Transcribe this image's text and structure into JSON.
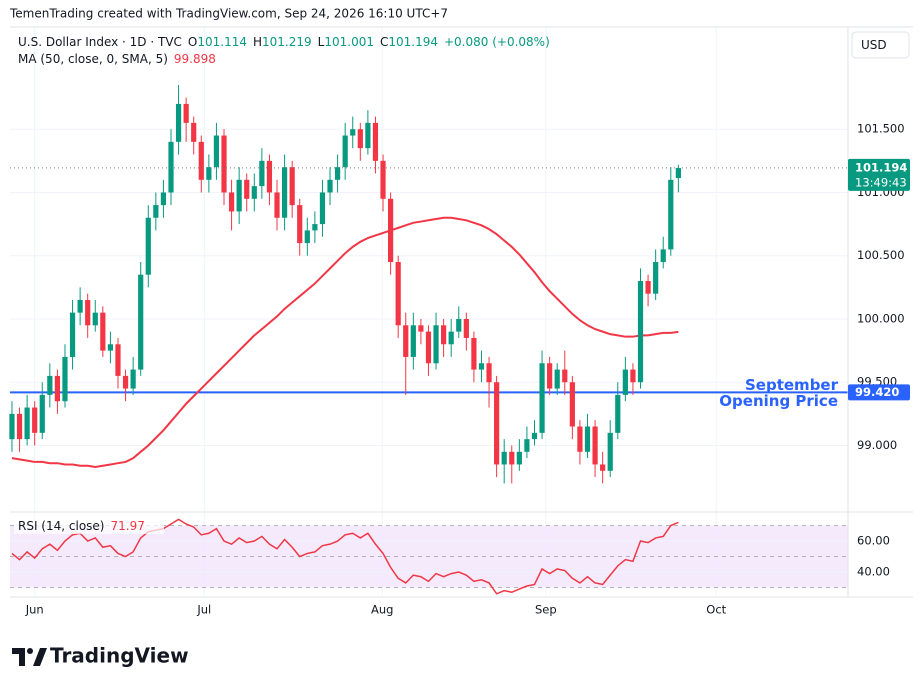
{
  "header": "TemenTrading created with TradingView.com, Sep 24, 2026 16:10 UTC+7",
  "currency": "USD",
  "footer": "TradingView",
  "chart_data": {
    "type": "candlestick",
    "title": "U.S. Dollar Index · 1D · TVC",
    "ohlc_labels": [
      "O",
      "H",
      "L",
      "C"
    ],
    "change": "+0.080 (+0.08%)",
    "up_color": "#089981",
    "down_color": "#f23645",
    "ohlc": {
      "open": [
        99.05,
        99.25,
        99.05,
        99.3,
        99.1,
        99.4,
        99.55,
        99.35,
        99.7,
        100.05,
        100.15,
        99.95,
        100.05,
        99.75,
        99.8,
        99.55,
        99.45,
        99.6,
        100.35,
        100.8,
        100.9,
        101.0,
        101.4,
        101.7,
        101.55,
        101.4,
        101.1,
        101.2,
        101.45,
        101.0,
        100.85,
        101.1,
        100.95,
        101.05,
        101.25,
        101.0,
        100.8,
        101.2,
        100.9,
        100.6,
        100.7,
        100.75,
        101.0,
        101.1,
        101.2,
        101.45,
        101.5,
        101.35,
        101.55,
        101.25,
        100.95,
        100.45,
        99.95,
        99.7,
        99.95,
        99.9,
        99.65,
        99.95,
        99.8,
        99.9,
        100.0,
        99.85,
        99.6,
        99.65,
        99.5,
        98.85,
        98.95,
        98.85,
        98.95,
        99.05,
        99.1,
        99.65,
        99.45,
        99.6,
        99.5,
        99.15,
        98.95,
        99.15,
        98.85,
        98.8,
        99.1,
        99.4,
        99.6,
        99.5,
        100.3,
        100.2,
        100.45,
        100.55,
        101.114
      ],
      "high": [
        99.35,
        99.3,
        99.4,
        99.35,
        99.5,
        99.65,
        99.6,
        99.8,
        100.15,
        100.25,
        100.2,
        100.15,
        100.1,
        99.9,
        99.85,
        99.6,
        99.7,
        100.45,
        100.9,
        101.0,
        101.1,
        101.5,
        101.85,
        101.75,
        101.6,
        101.45,
        101.3,
        101.55,
        101.5,
        101.1,
        101.2,
        101.15,
        101.15,
        101.35,
        101.3,
        101.1,
        101.3,
        101.25,
        100.95,
        100.8,
        100.85,
        101.1,
        101.2,
        101.3,
        101.55,
        101.6,
        101.55,
        101.65,
        101.6,
        101.3,
        101.0,
        100.5,
        100.05,
        100.05,
        100.0,
        99.95,
        100.05,
        100.0,
        100.0,
        100.1,
        100.05,
        99.9,
        99.75,
        99.7,
        99.55,
        99.05,
        99.0,
        99.05,
        99.15,
        99.2,
        99.75,
        99.7,
        99.65,
        99.75,
        99.55,
        99.2,
        99.25,
        99.2,
        98.95,
        99.2,
        99.5,
        99.7,
        99.65,
        100.4,
        100.35,
        100.55,
        100.65,
        101.2,
        101.219
      ],
      "low": [
        98.95,
        98.95,
        99.0,
        99.0,
        99.05,
        99.3,
        99.25,
        99.3,
        99.6,
        99.95,
        99.85,
        99.9,
        99.7,
        99.65,
        99.45,
        99.35,
        99.4,
        99.55,
        100.25,
        100.7,
        100.8,
        100.9,
        101.3,
        101.4,
        101.3,
        101.0,
        101.0,
        101.1,
        100.9,
        100.7,
        100.75,
        100.85,
        100.85,
        100.95,
        100.9,
        100.7,
        100.7,
        100.8,
        100.5,
        100.5,
        100.6,
        100.65,
        100.9,
        101.0,
        101.1,
        101.35,
        101.25,
        101.3,
        101.15,
        100.85,
        100.35,
        99.85,
        99.4,
        99.6,
        99.8,
        99.55,
        99.6,
        99.7,
        99.7,
        99.85,
        99.75,
        99.5,
        99.5,
        99.3,
        98.75,
        98.7,
        98.7,
        98.8,
        98.9,
        99.0,
        99.05,
        99.4,
        99.4,
        99.4,
        99.05,
        98.85,
        98.9,
        98.75,
        98.7,
        98.75,
        99.05,
        99.35,
        99.4,
        99.45,
        100.1,
        100.15,
        100.4,
        100.5,
        101.001
      ],
      "close": [
        99.25,
        99.05,
        99.3,
        99.1,
        99.4,
        99.55,
        99.35,
        99.7,
        100.05,
        100.15,
        99.95,
        100.05,
        99.75,
        99.8,
        99.55,
        99.45,
        99.6,
        100.35,
        100.8,
        100.9,
        101.0,
        101.4,
        101.7,
        101.55,
        101.4,
        101.1,
        101.2,
        101.45,
        101.0,
        100.85,
        101.1,
        100.95,
        101.05,
        101.25,
        101.0,
        100.8,
        101.2,
        100.9,
        100.6,
        100.7,
        100.75,
        101.0,
        101.1,
        101.2,
        101.45,
        101.5,
        101.35,
        101.55,
        101.25,
        100.95,
        100.45,
        99.95,
        99.7,
        99.95,
        99.9,
        99.65,
        99.95,
        99.8,
        99.9,
        100.0,
        99.85,
        99.6,
        99.65,
        99.5,
        98.85,
        98.95,
        98.85,
        98.95,
        99.05,
        99.1,
        99.65,
        99.45,
        99.6,
        99.5,
        99.15,
        98.95,
        99.15,
        98.85,
        98.8,
        99.1,
        99.4,
        99.6,
        99.5,
        100.3,
        100.2,
        100.45,
        100.55,
        101.1,
        101.194
      ]
    },
    "ma": {
      "name": "MA (50, close, 0, SMA, 5)",
      "color": "#f23645",
      "values": [
        98.9,
        98.89,
        98.88,
        98.87,
        98.87,
        98.86,
        98.86,
        98.85,
        98.85,
        98.84,
        98.84,
        98.83,
        98.84,
        98.85,
        98.86,
        98.87,
        98.9,
        98.95,
        99.0,
        99.06,
        99.12,
        99.19,
        99.26,
        99.33,
        99.39,
        99.45,
        99.51,
        99.57,
        99.63,
        99.69,
        99.75,
        99.81,
        99.87,
        99.92,
        99.97,
        100.02,
        100.08,
        100.13,
        100.18,
        100.23,
        100.28,
        100.34,
        100.4,
        100.46,
        100.52,
        100.57,
        100.61,
        100.64,
        100.66,
        100.68,
        100.7,
        100.72,
        100.74,
        100.76,
        100.77,
        100.78,
        100.79,
        100.8,
        100.8,
        100.79,
        100.78,
        100.76,
        100.74,
        100.71,
        100.67,
        100.62,
        100.57,
        100.51,
        100.44,
        100.37,
        100.29,
        100.22,
        100.16,
        100.1,
        100.04,
        99.99,
        99.95,
        99.92,
        99.9,
        99.88,
        99.87,
        99.86,
        99.86,
        99.87,
        99.87,
        99.88,
        99.89,
        99.89,
        99.898
      ]
    },
    "countdown": "13:49:43",
    "hline": {
      "label": [
        "September",
        "Opening Price"
      ],
      "value": 99.42,
      "value_label": "99.420",
      "color": "#2962ff"
    },
    "ylim": [
      98.49,
      102.3
    ],
    "yticks": [
      {
        "value": 99.0,
        "label": "99.000"
      },
      {
        "value": 99.5,
        "label": "99.500"
      },
      {
        "value": 100.0,
        "label": "100.000"
      },
      {
        "value": 100.5,
        "label": "100.500"
      },
      {
        "value": 101.0,
        "label": "101.000"
      },
      {
        "value": 101.5,
        "label": "101.500"
      }
    ],
    "xlim": [
      -0.26,
      110.4
    ],
    "xticks": [
      {
        "value": 3,
        "label": "Jun"
      },
      {
        "value": 25.4,
        "label": "Jul"
      },
      {
        "value": 48.9,
        "label": "Aug"
      },
      {
        "value": 70.5,
        "label": "Sep"
      },
      {
        "value": 93,
        "label": "Oct"
      }
    ],
    "grid": true,
    "rsi": {
      "type": "line",
      "title": "RSI (14, close)",
      "color": "#f23645",
      "band_color": "#f3e5fb",
      "values": [
        52,
        48,
        53,
        49,
        55,
        58,
        54,
        60,
        64,
        65,
        60,
        62,
        56,
        57,
        52,
        50,
        53,
        62,
        66,
        67,
        68,
        71,
        74,
        71,
        69,
        64,
        65,
        68,
        60,
        58,
        62,
        59,
        60,
        63,
        58,
        55,
        61,
        56,
        50,
        52,
        53,
        57,
        58,
        60,
        64,
        65,
        62,
        65,
        58,
        52,
        43,
        36,
        33,
        38,
        37,
        34,
        39,
        37,
        39,
        40,
        38,
        34,
        35,
        33,
        26,
        28,
        27,
        29,
        31,
        32,
        42,
        39,
        42,
        41,
        36,
        33,
        37,
        33,
        32,
        38,
        44,
        48,
        47,
        60,
        59,
        62,
        63,
        70,
        71.97
      ],
      "ylim": [
        25.2,
        76.8
      ],
      "yticks": [
        {
          "value": 40,
          "label": "40.00"
        },
        {
          "value": 60,
          "label": "60.00"
        }
      ],
      "levels": [
        70,
        50,
        30
      ]
    }
  }
}
